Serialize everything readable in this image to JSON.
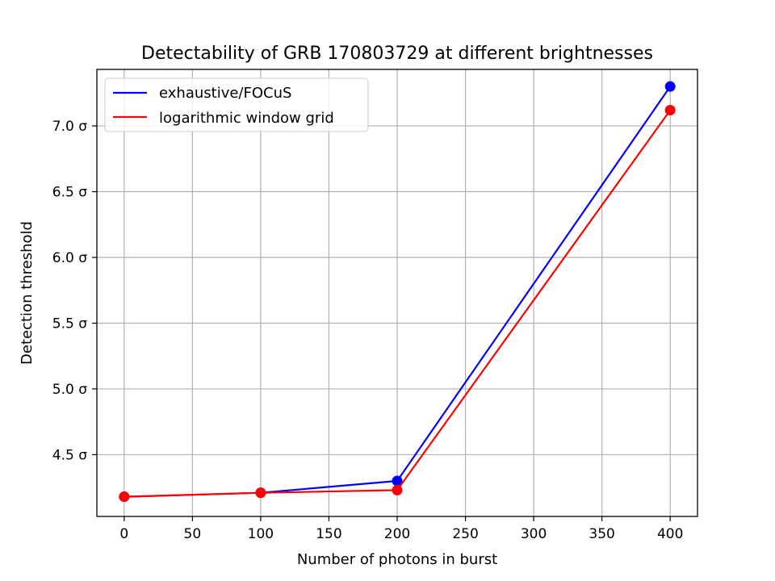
{
  "chart_data": {
    "type": "line",
    "title": "Detectability of GRB 170803729 at different brightnesses",
    "xlabel": "Number of photons in burst",
    "ylabel": "Detection threshold",
    "x": [
      0,
      100,
      200,
      400
    ],
    "xlim": [
      -20,
      420
    ],
    "ylim": [
      4.03,
      7.43
    ],
    "xticks": [
      0,
      50,
      100,
      150,
      200,
      250,
      300,
      350,
      400
    ],
    "yticks": [
      4.5,
      5.0,
      5.5,
      6.0,
      6.5,
      7.0
    ],
    "ytick_labels": [
      "4.5 σ",
      "5.0 σ",
      "5.5 σ",
      "6.0 σ",
      "6.5 σ",
      "7.0 σ"
    ],
    "grid": true,
    "legend_position": "top-left",
    "series": [
      {
        "name": "exhaustive/FOCuS",
        "color": "#0000ff",
        "values": [
          4.18,
          4.21,
          4.3,
          7.3
        ]
      },
      {
        "name": "logarithmic window grid",
        "color": "#ff0000",
        "values": [
          4.18,
          4.21,
          4.23,
          7.12
        ]
      }
    ]
  }
}
